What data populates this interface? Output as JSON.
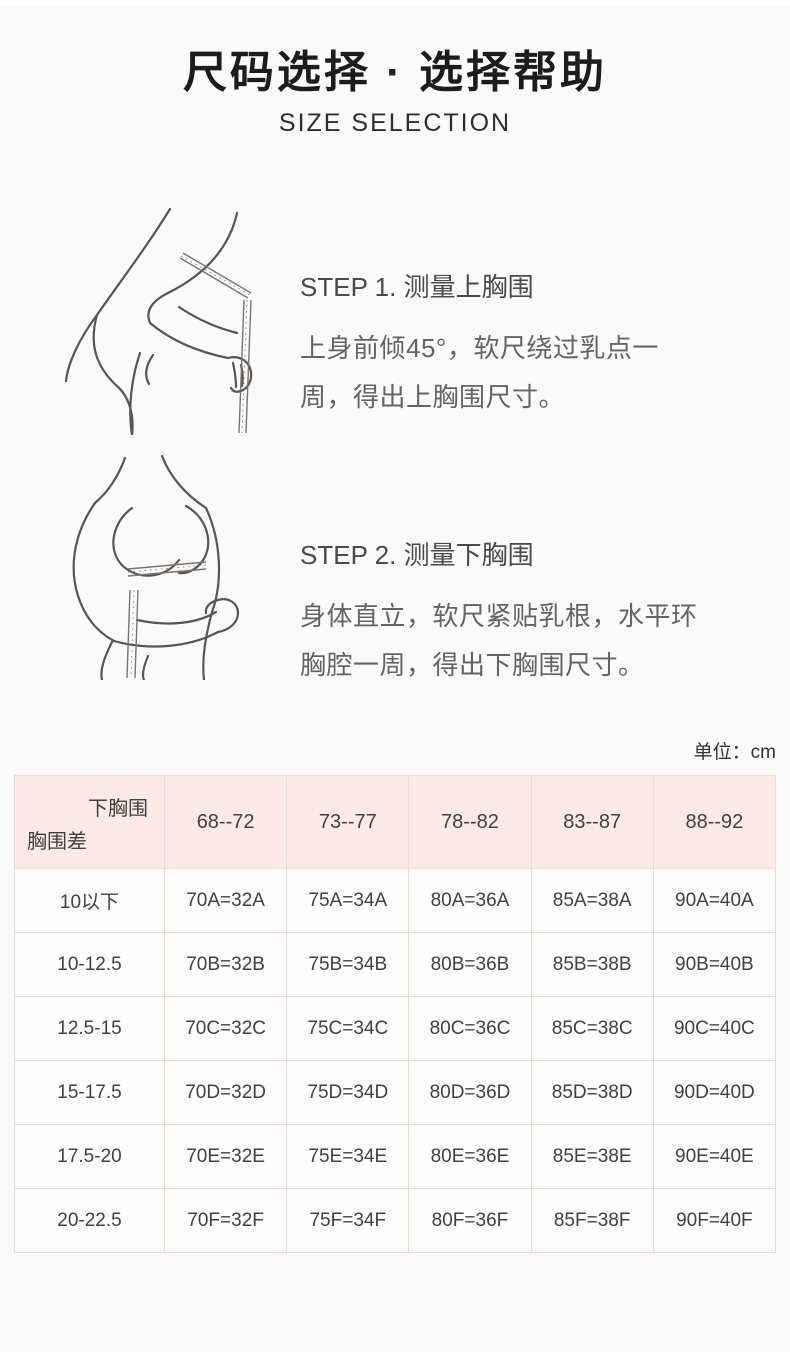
{
  "page": {
    "title": "尺码选择 · 选择帮助",
    "subtitle": "SIZE SELECTION",
    "unit_label": "单位：cm"
  },
  "steps": [
    {
      "heading": "STEP 1. 测量上胸围",
      "body": "上身前倾45°，软尺绕过乳点一周，得出上胸围尺寸。"
    },
    {
      "heading": "STEP 2. 测量下胸围",
      "body": "身体直立，软尺紧贴乳根，水平环胸腔一周，得出下胸围尺寸。"
    }
  ],
  "size_table": {
    "corner": {
      "top": "下胸围",
      "bottom": "胸围差"
    },
    "columns": [
      "68--72",
      "73--77",
      "78--82",
      "83--87",
      "88--92"
    ],
    "rows": [
      {
        "label": "10以下",
        "cells": [
          "70A=32A",
          "75A=34A",
          "80A=36A",
          "85A=38A",
          "90A=40A"
        ]
      },
      {
        "label": "10-12.5",
        "cells": [
          "70B=32B",
          "75B=34B",
          "80B=36B",
          "85B=38B",
          "90B=40B"
        ]
      },
      {
        "label": "12.5-15",
        "cells": [
          "70C=32C",
          "75C=34C",
          "80C=36C",
          "85C=38C",
          "90C=40C"
        ]
      },
      {
        "label": "15-17.5",
        "cells": [
          "70D=32D",
          "75D=34D",
          "80D=36D",
          "85D=38D",
          "90D=40D"
        ]
      },
      {
        "label": "17.5-20",
        "cells": [
          "70E=32E",
          "75E=34E",
          "80E=36E",
          "85E=38E",
          "90E=40E"
        ]
      },
      {
        "label": "20-22.5",
        "cells": [
          "70F=32F",
          "75F=34F",
          "80F=36F",
          "85F=38F",
          "90F=40F"
        ]
      }
    ]
  },
  "colors": {
    "page_background": "#fafafa",
    "table_header_background": "#fcebe4",
    "table_border": "#f5d7ce",
    "title_text": "#1c1c1c",
    "body_text": "#646464",
    "table_text": "#414141"
  }
}
